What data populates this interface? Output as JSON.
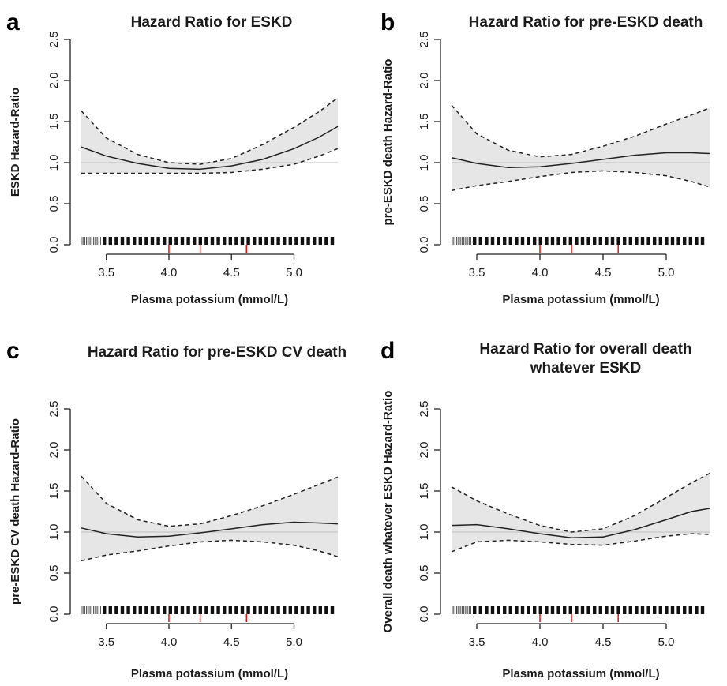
{
  "figure": {
    "panels": [
      {
        "letter": "a",
        "title_lines": [
          "Hazard Ratio for ESKD"
        ],
        "chart_data": {
          "type": "line",
          "title": "Hazard Ratio for ESKD",
          "xlabel": "Plasma potassium  (mmol/L)",
          "ylabel": "ESKD Hazard-Ratio",
          "xlim": [
            3.3,
            5.35
          ],
          "ylim": [
            0.0,
            2.5
          ],
          "xticks": [
            "3.5",
            "4.0",
            "4.5",
            "5.0"
          ],
          "yticks": [
            "0.0",
            "0.5",
            "1.0",
            "1.5",
            "2.0",
            "2.5"
          ],
          "reference_line": 1.0,
          "quantile_marks_x": [
            4.0,
            4.25,
            4.62
          ],
          "rug": true,
          "series": [
            {
              "role": "estimate",
              "line": "solid",
              "x": [
                3.3,
                3.5,
                3.75,
                4.0,
                4.25,
                4.5,
                4.75,
                5.0,
                5.2,
                5.35
              ],
              "y": [
                1.19,
                1.08,
                0.99,
                0.93,
                0.92,
                0.96,
                1.04,
                1.17,
                1.31,
                1.44
              ]
            },
            {
              "role": "upper",
              "line": "dashed",
              "x": [
                3.3,
                3.5,
                3.75,
                4.0,
                4.25,
                4.5,
                4.75,
                5.0,
                5.2,
                5.35
              ],
              "y": [
                1.63,
                1.3,
                1.1,
                1.0,
                0.98,
                1.05,
                1.22,
                1.43,
                1.62,
                1.79
              ]
            },
            {
              "role": "lower",
              "line": "dashed",
              "x": [
                3.3,
                3.5,
                3.75,
                4.0,
                4.25,
                4.5,
                4.75,
                5.0,
                5.2,
                5.35
              ],
              "y": [
                0.87,
                0.87,
                0.87,
                0.87,
                0.87,
                0.88,
                0.92,
                0.98,
                1.08,
                1.17
              ]
            }
          ]
        }
      },
      {
        "letter": "b",
        "title_lines": [
          "Hazard Ratio for pre-ESKD death"
        ],
        "chart_data": {
          "type": "line",
          "title": "Hazard Ratio for pre-ESKD death",
          "xlabel": "Plasma potassium  (mmol/L)",
          "ylabel": "pre-ESKD death Hazard-Ratio",
          "xlim": [
            3.3,
            5.35
          ],
          "ylim": [
            0.0,
            2.5
          ],
          "xticks": [
            "3.5",
            "4.0",
            "4.5",
            "5.0"
          ],
          "yticks": [
            "0.0",
            "0.5",
            "1.0",
            "1.5",
            "2.0",
            "2.5"
          ],
          "reference_line": 1.0,
          "quantile_marks_x": [
            4.0,
            4.25,
            4.62
          ],
          "rug": true,
          "series": [
            {
              "role": "estimate",
              "line": "solid",
              "x": [
                3.3,
                3.5,
                3.75,
                4.0,
                4.25,
                4.5,
                4.75,
                5.0,
                5.2,
                5.35
              ],
              "y": [
                1.06,
                0.99,
                0.94,
                0.95,
                0.99,
                1.04,
                1.09,
                1.12,
                1.12,
                1.11
              ]
            },
            {
              "role": "upper",
              "line": "dashed",
              "x": [
                3.3,
                3.5,
                3.75,
                4.0,
                4.25,
                4.5,
                4.75,
                5.0,
                5.2,
                5.35
              ],
              "y": [
                1.7,
                1.35,
                1.15,
                1.07,
                1.1,
                1.2,
                1.32,
                1.47,
                1.58,
                1.67
              ]
            },
            {
              "role": "lower",
              "line": "dashed",
              "x": [
                3.3,
                3.5,
                3.75,
                4.0,
                4.25,
                4.5,
                4.75,
                5.0,
                5.2,
                5.35
              ],
              "y": [
                0.66,
                0.72,
                0.77,
                0.83,
                0.88,
                0.9,
                0.88,
                0.84,
                0.77,
                0.7
              ]
            }
          ]
        }
      },
      {
        "letter": "c",
        "title_lines": [
          "Hazard Ratio for pre-ESKD CV death"
        ],
        "chart_data": {
          "type": "line",
          "title": "Hazard Ratio for pre-ESKD CV death",
          "xlabel": "Plasma potassium (mmol/L)",
          "ylabel": "pre-ESKD CV death Hazard-Ratio",
          "xlim": [
            3.3,
            5.35
          ],
          "ylim": [
            0.0,
            2.5
          ],
          "xticks": [
            "3.5",
            "4.0",
            "4.5",
            "5.0"
          ],
          "yticks": [
            "0.0",
            "0.5",
            "1.0",
            "1.5",
            "2.0",
            "2.5"
          ],
          "reference_line": 1.0,
          "quantile_marks_x": [
            4.0,
            4.25,
            4.62
          ],
          "rug": true,
          "series": [
            {
              "role": "estimate",
              "line": "solid",
              "x": [
                3.3,
                3.5,
                3.75,
                4.0,
                4.25,
                4.5,
                4.75,
                5.0,
                5.2,
                5.35
              ],
              "y": [
                1.05,
                0.98,
                0.94,
                0.95,
                0.99,
                1.04,
                1.09,
                1.12,
                1.11,
                1.1
              ]
            },
            {
              "role": "upper",
              "line": "dashed",
              "x": [
                3.3,
                3.5,
                3.75,
                4.0,
                4.25,
                4.5,
                4.75,
                5.0,
                5.2,
                5.35
              ],
              "y": [
                1.68,
                1.35,
                1.15,
                1.07,
                1.1,
                1.2,
                1.32,
                1.46,
                1.58,
                1.67
              ]
            },
            {
              "role": "lower",
              "line": "dashed",
              "x": [
                3.3,
                3.5,
                3.75,
                4.0,
                4.25,
                4.5,
                4.75,
                5.0,
                5.2,
                5.35
              ],
              "y": [
                0.65,
                0.72,
                0.77,
                0.83,
                0.88,
                0.9,
                0.88,
                0.84,
                0.77,
                0.7
              ]
            }
          ]
        }
      },
      {
        "letter": "d",
        "title_lines": [
          "Hazard Ratio for overall death",
          "whatever ESKD"
        ],
        "chart_data": {
          "type": "line",
          "title": "Hazard Ratio for overall death whatever ESKD",
          "xlabel": "Plasma potassium  (mmol/L)",
          "ylabel": "Overall death whatever ESKD Hazard-Ratio",
          "xlim": [
            3.3,
            5.35
          ],
          "ylim": [
            0.0,
            2.5
          ],
          "xticks": [
            "3.5",
            "4.0",
            "4.5",
            "5.0"
          ],
          "yticks": [
            "0.0",
            "0.5",
            "1.0",
            "1.5",
            "2.0",
            "2.5"
          ],
          "reference_line": 1.0,
          "quantile_marks_x": [
            4.0,
            4.25,
            4.62
          ],
          "rug": true,
          "series": [
            {
              "role": "estimate",
              "line": "solid",
              "x": [
                3.3,
                3.5,
                3.75,
                4.0,
                4.25,
                4.5,
                4.75,
                5.0,
                5.2,
                5.35
              ],
              "y": [
                1.08,
                1.09,
                1.04,
                0.98,
                0.93,
                0.94,
                1.03,
                1.15,
                1.25,
                1.29
              ]
            },
            {
              "role": "upper",
              "line": "dashed",
              "x": [
                3.3,
                3.5,
                3.75,
                4.0,
                4.25,
                4.5,
                4.75,
                5.0,
                5.2,
                5.35
              ],
              "y": [
                1.55,
                1.38,
                1.22,
                1.08,
                1.0,
                1.04,
                1.2,
                1.42,
                1.6,
                1.72
              ]
            },
            {
              "role": "lower",
              "line": "dashed",
              "x": [
                3.3,
                3.5,
                3.75,
                4.0,
                4.25,
                4.5,
                4.75,
                5.0,
                5.2,
                5.35
              ],
              "y": [
                0.76,
                0.88,
                0.9,
                0.88,
                0.85,
                0.84,
                0.89,
                0.95,
                0.98,
                0.97
              ]
            }
          ]
        }
      }
    ]
  }
}
